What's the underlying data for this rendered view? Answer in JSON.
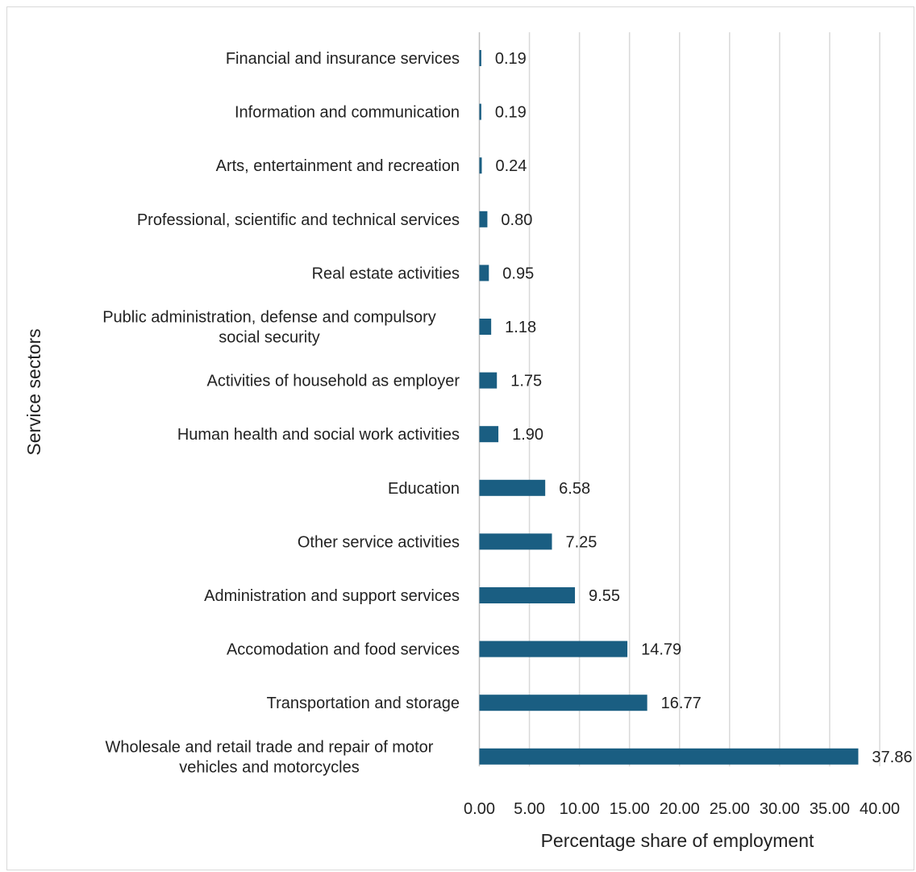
{
  "chart_data": {
    "type": "bar",
    "orientation": "horizontal",
    "categories": [
      "Financial and insurance services",
      "Information and communication",
      "Arts, entertainment and recreation",
      "Professional, scientific and technical services",
      "Real estate activities",
      "Public administration, defense and compulsory social security",
      "Activities of household as employer",
      "Human health and social work activities",
      "Education",
      "Other service activities",
      "Administration and support services",
      "Accomodation and food services",
      "Transportation and storage",
      "Wholesale and retail trade and repair of motor vehicles and motorcycles"
    ],
    "category_lines": [
      [
        "Financial and insurance services"
      ],
      [
        "Information and communication"
      ],
      [
        "Arts, entertainment and recreation"
      ],
      [
        "Professional, scientific and technical services"
      ],
      [
        "Real estate activities"
      ],
      [
        "Public administration, defense and compulsory",
        "social security"
      ],
      [
        "Activities of household as employer"
      ],
      [
        "Human health and social work activities"
      ],
      [
        "Education"
      ],
      [
        "Other service activities"
      ],
      [
        "Administration and support services"
      ],
      [
        "Accomodation and food services"
      ],
      [
        "Transportation and storage"
      ],
      [
        "Wholesale and retail trade and repair of motor",
        "vehicles and motorcycles"
      ]
    ],
    "values": [
      0.19,
      0.19,
      0.24,
      0.8,
      0.95,
      1.18,
      1.75,
      1.9,
      6.58,
      7.25,
      9.55,
      14.79,
      16.77,
      37.86
    ],
    "value_labels": [
      "0.19",
      "0.19",
      "0.24",
      "0.80",
      "0.95",
      "1.18",
      "1.75",
      "1.90",
      "6.58",
      "7.25",
      "9.55",
      "14.79",
      "16.77",
      "37.86"
    ],
    "xlim": [
      0,
      40
    ],
    "xticks": [
      0,
      5,
      10,
      15,
      20,
      25,
      30,
      35,
      40
    ],
    "xtick_labels": [
      "0.00",
      "5.00",
      "10.00",
      "15.00",
      "20.00",
      "25.00",
      "30.00",
      "35.00",
      "40.00"
    ],
    "xlabel": "Percentage share of employment",
    "ylabel": "Service sectors",
    "title": "",
    "grid": "vertical",
    "legend": "none",
    "bar_color": "#1a5e82"
  }
}
